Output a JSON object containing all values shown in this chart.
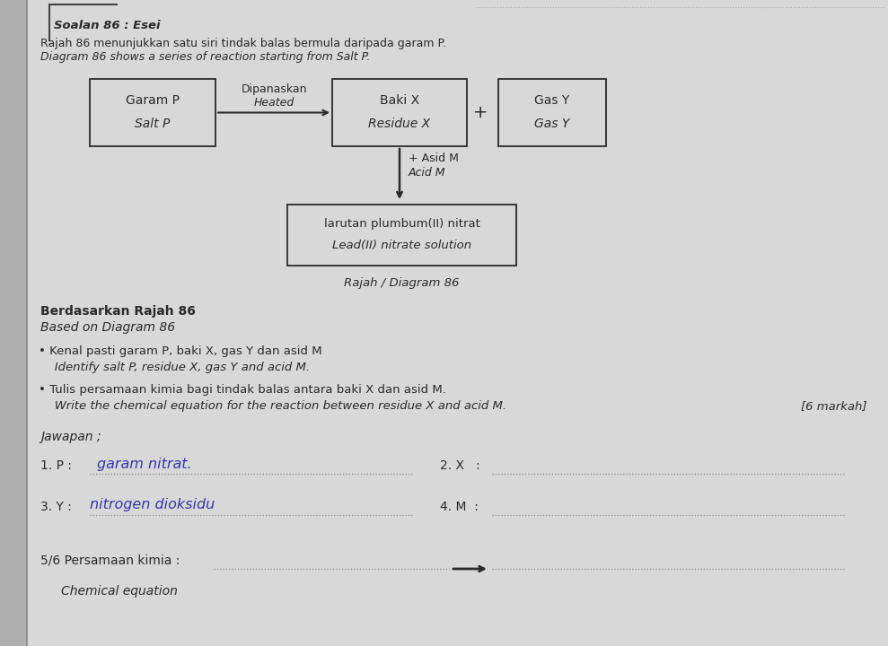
{
  "bg_color": "#c8c8c8",
  "page_color": "#dcdcdc",
  "title_line1": "Soalan 86 : Esei",
  "title_line2": "Rajah 86 menunjukkan satu siri tindak balas bermula daripada garam P.",
  "title_line3": "Diagram 86 shows a series of reaction starting from Salt P.",
  "box_salt_line1": "Garam P",
  "box_salt_line2": "Salt P",
  "arrow_label_line1": "Dipanaskan",
  "arrow_label_line2": "Heated",
  "box_residue_line1": "Baki X",
  "box_residue_line2": "Residue X",
  "plus_sign": "+",
  "box_gas_line1": "Gas Y",
  "box_gas_line2": "Gas Y",
  "acid_label_line1": "+ Asid M",
  "acid_label_line2": "Acid M",
  "box_lead_line1": "larutan plumbum(II) nitrat",
  "box_lead_line2": "Lead(II) nitrate solution",
  "diagram_caption": "Rajah / Diagram 86",
  "based_line1": "Berdasarkan Rajah 86",
  "based_line2": "Based on Diagram 86",
  "bullet1_line1": "• Kenal pasti garam P, baki X, gas Y dan asid M",
  "bullet1_line2": "   Identify salt P, residue X, gas Y and acid M.",
  "bullet2_line1": "• Tulis persamaan kimia bagi tindak balas antara baki X dan asid M.",
  "bullet2_line2": "   Write the chemical equation for the reaction between residue X and acid M.",
  "marks": "[6 markah]",
  "jawapan": "Jawapan ;",
  "q1_label": "1. P : ........",
  "q1_answer": "garam nitrat.",
  "q2_label": "2. X   : ......................................",
  "q3_label": "3. Y : ........",
  "q3_answer": "nitrogen dioksidu",
  "q4_label": "4. M  : ......................................",
  "q56_label": "5/6 Persamaan kimia : ...............................",
  "chemical_eq": "Chemical equation",
  "handwriting_color": "#3535b0",
  "text_color": "#2a2a2a",
  "box_color": "#2a2a2a",
  "dotted_color": "#888888"
}
